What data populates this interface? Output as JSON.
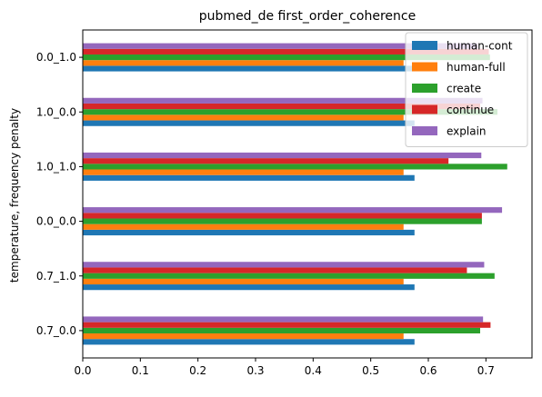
{
  "chart_data": {
    "type": "bar",
    "orientation": "horizontal",
    "title": "pubmed_de first_order_coherence",
    "xlabel": "",
    "ylabel": "temperature, frequency penalty",
    "categories": [
      "0.7_0.0",
      "0.7_1.0",
      "0.0_0.0",
      "1.0_1.0",
      "1.0_0.0",
      "0.0_1.0"
    ],
    "xlim": [
      0,
      0.78
    ],
    "xticks": [
      "0.0",
      "0.1",
      "0.2",
      "0.3",
      "0.4",
      "0.5",
      "0.6",
      "0.7"
    ],
    "grid": false,
    "legend_position": "top-right",
    "series": [
      {
        "name": "human-cont",
        "color": "#1f77b4",
        "values": [
          0.576,
          0.576,
          0.576,
          0.576,
          0.576,
          0.576
        ]
      },
      {
        "name": "human-full",
        "color": "#ff7f0e",
        "values": [
          0.557,
          0.557,
          0.557,
          0.557,
          0.557,
          0.557
        ]
      },
      {
        "name": "create",
        "color": "#2ca02c",
        "values": [
          0.69,
          0.715,
          0.693,
          0.737,
          0.72,
          0.707
        ]
      },
      {
        "name": "continue",
        "color": "#d62728",
        "values": [
          0.708,
          0.667,
          0.693,
          0.635,
          0.69,
          0.705
        ]
      },
      {
        "name": "explain",
        "color": "#9467bd",
        "values": [
          0.695,
          0.697,
          0.728,
          0.692,
          0.694,
          0.686
        ]
      }
    ]
  }
}
